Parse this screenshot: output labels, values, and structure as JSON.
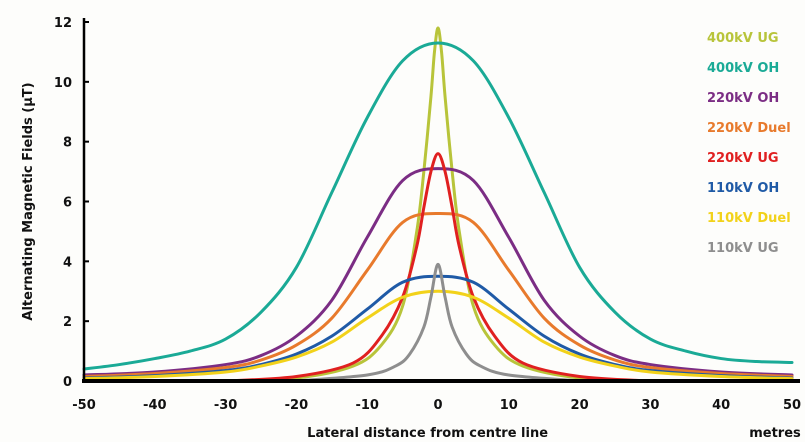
{
  "chart_data": {
    "type": "line",
    "title": "",
    "xlabel": "Lateral distance from centre line",
    "xunit": "metres",
    "ylabel": "Alternating Magnetic Fields (µT)",
    "xlim": [
      -50,
      50
    ],
    "ylim": [
      0,
      12
    ],
    "xticks": [
      -50,
      -40,
      -30,
      -20,
      -10,
      0,
      10,
      20,
      30,
      40,
      50
    ],
    "yticks": [
      0,
      2,
      4,
      6,
      8,
      10,
      12
    ],
    "grid": false,
    "legend_position": "right",
    "series": [
      {
        "name": "400kV UG",
        "color": "#b8c43a",
        "points": [
          [
            -30,
            0
          ],
          [
            -20,
            0.1
          ],
          [
            -12,
            0.5
          ],
          [
            -8,
            1.2
          ],
          [
            -5,
            2.5
          ],
          [
            -3,
            5.0
          ],
          [
            -2,
            7.0
          ],
          [
            -1,
            9.5
          ],
          [
            -0.5,
            11.0
          ],
          [
            0,
            11.8
          ],
          [
            0.5,
            11.0
          ],
          [
            1,
            9.5
          ],
          [
            2,
            7.0
          ],
          [
            3,
            5.0
          ],
          [
            5,
            2.5
          ],
          [
            8,
            1.2
          ],
          [
            12,
            0.5
          ],
          [
            20,
            0.1
          ],
          [
            30,
            0
          ]
        ]
      },
      {
        "name": "400kV OH",
        "color": "#1aaa96",
        "points": [
          [
            -50,
            0.4
          ],
          [
            -45,
            0.55
          ],
          [
            -40,
            0.75
          ],
          [
            -35,
            1.0
          ],
          [
            -30,
            1.4
          ],
          [
            -25,
            2.3
          ],
          [
            -20,
            3.8
          ],
          [
            -15,
            6.3
          ],
          [
            -10,
            8.8
          ],
          [
            -5,
            10.7
          ],
          [
            0,
            11.3
          ],
          [
            5,
            10.7
          ],
          [
            10,
            8.8
          ],
          [
            15,
            6.3
          ],
          [
            20,
            3.8
          ],
          [
            25,
            2.3
          ],
          [
            30,
            1.4
          ],
          [
            35,
            1.0
          ],
          [
            40,
            0.75
          ],
          [
            45,
            0.65
          ],
          [
            50,
            0.62
          ]
        ]
      },
      {
        "name": "220kV OH",
        "color": "#7b2d84",
        "points": [
          [
            -50,
            0.2
          ],
          [
            -40,
            0.3
          ],
          [
            -30,
            0.55
          ],
          [
            -25,
            0.85
          ],
          [
            -20,
            1.5
          ],
          [
            -15,
            2.7
          ],
          [
            -10,
            4.8
          ],
          [
            -5,
            6.7
          ],
          [
            0,
            7.1
          ],
          [
            5,
            6.7
          ],
          [
            10,
            4.8
          ],
          [
            15,
            2.7
          ],
          [
            20,
            1.5
          ],
          [
            25,
            0.85
          ],
          [
            30,
            0.55
          ],
          [
            40,
            0.3
          ],
          [
            50,
            0.2
          ]
        ]
      },
      {
        "name": "220kV Duel",
        "color": "#e87a2c",
        "points": [
          [
            -50,
            0.15
          ],
          [
            -40,
            0.25
          ],
          [
            -30,
            0.45
          ],
          [
            -25,
            0.7
          ],
          [
            -20,
            1.2
          ],
          [
            -15,
            2.1
          ],
          [
            -10,
            3.7
          ],
          [
            -5,
            5.3
          ],
          [
            0,
            5.6
          ],
          [
            5,
            5.3
          ],
          [
            10,
            3.7
          ],
          [
            15,
            2.1
          ],
          [
            20,
            1.2
          ],
          [
            25,
            0.7
          ],
          [
            30,
            0.45
          ],
          [
            40,
            0.25
          ],
          [
            50,
            0.15
          ]
        ]
      },
      {
        "name": "220kV UG",
        "color": "#e02020",
        "points": [
          [
            -30,
            0
          ],
          [
            -20,
            0.15
          ],
          [
            -12,
            0.6
          ],
          [
            -8,
            1.5
          ],
          [
            -5,
            2.8
          ],
          [
            -3,
            4.5
          ],
          [
            -2,
            5.8
          ],
          [
            -1,
            7.0
          ],
          [
            0,
            7.6
          ],
          [
            1,
            7.0
          ],
          [
            2,
            5.8
          ],
          [
            3,
            4.5
          ],
          [
            5,
            2.8
          ],
          [
            8,
            1.5
          ],
          [
            12,
            0.6
          ],
          [
            20,
            0.15
          ],
          [
            30,
            0
          ]
        ]
      },
      {
        "name": "110kV OH",
        "color": "#1f5aa6",
        "points": [
          [
            -50,
            0.1
          ],
          [
            -40,
            0.18
          ],
          [
            -30,
            0.35
          ],
          [
            -25,
            0.55
          ],
          [
            -20,
            0.9
          ],
          [
            -15,
            1.5
          ],
          [
            -10,
            2.4
          ],
          [
            -5,
            3.3
          ],
          [
            0,
            3.5
          ],
          [
            5,
            3.3
          ],
          [
            10,
            2.4
          ],
          [
            15,
            1.5
          ],
          [
            20,
            0.9
          ],
          [
            25,
            0.55
          ],
          [
            30,
            0.35
          ],
          [
            40,
            0.18
          ],
          [
            50,
            0.1
          ]
        ]
      },
      {
        "name": "110kV Duel",
        "color": "#f2d21a",
        "points": [
          [
            -50,
            0.08
          ],
          [
            -40,
            0.15
          ],
          [
            -30,
            0.3
          ],
          [
            -25,
            0.5
          ],
          [
            -20,
            0.8
          ],
          [
            -15,
            1.3
          ],
          [
            -10,
            2.1
          ],
          [
            -5,
            2.8
          ],
          [
            0,
            3.0
          ],
          [
            5,
            2.8
          ],
          [
            10,
            2.1
          ],
          [
            15,
            1.3
          ],
          [
            20,
            0.8
          ],
          [
            25,
            0.5
          ],
          [
            30,
            0.3
          ],
          [
            40,
            0.15
          ],
          [
            50,
            0.08
          ]
        ]
      },
      {
        "name": "110kV UG",
        "color": "#8e8e8e",
        "points": [
          [
            -20,
            0
          ],
          [
            -10,
            0.2
          ],
          [
            -6,
            0.5
          ],
          [
            -4,
            0.9
          ],
          [
            -2,
            1.8
          ],
          [
            -1,
            2.8
          ],
          [
            0,
            3.9
          ],
          [
            1,
            2.8
          ],
          [
            2,
            1.8
          ],
          [
            4,
            0.9
          ],
          [
            6,
            0.5
          ],
          [
            10,
            0.2
          ],
          [
            20,
            0
          ]
        ]
      }
    ]
  }
}
